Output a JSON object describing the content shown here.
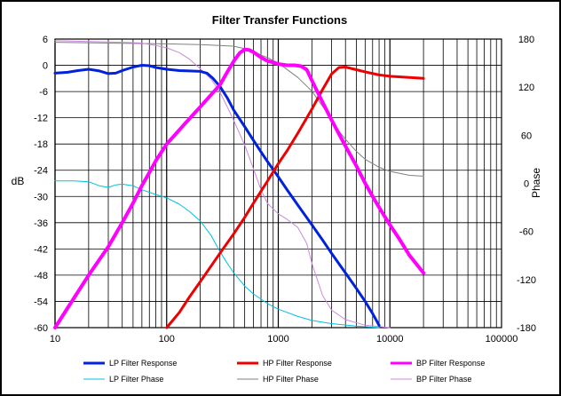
{
  "chart_data": {
    "type": "line",
    "title": "Filter Transfer Functions",
    "xlabel": "",
    "ylabel": "dB",
    "y2label": "Phase",
    "x_scale": "log",
    "xlim": [
      10,
      100000
    ],
    "ylim": [
      -60,
      6
    ],
    "y2lim": [
      -180,
      180
    ],
    "grid": true,
    "legend_position": "bottom",
    "x_ticks": [
      10,
      100,
      1000,
      10000,
      100000
    ],
    "x_tick_labels": [
      "10",
      "100",
      "1000",
      "10000",
      "100000"
    ],
    "y_ticks": [
      6,
      0,
      -6,
      -12,
      -18,
      -24,
      -30,
      -36,
      -42,
      -48,
      -54,
      -60
    ],
    "y_tick_labels": [
      "6",
      "0",
      "-6",
      "-12",
      "-18",
      "-24",
      "-30",
      "-36",
      "-42",
      "-48",
      "-54",
      "-60"
    ],
    "y2_ticks": [
      180,
      120,
      60,
      0,
      -60,
      -120,
      -180
    ],
    "y2_tick_labels": [
      "180",
      "120",
      "60",
      "0",
      "-60",
      "-120",
      "-180"
    ],
    "series": [
      {
        "name": "LP Filter Response",
        "axis": "left",
        "color": "#0022dd",
        "width": 3,
        "points": [
          [
            10,
            -1.8
          ],
          [
            13,
            -1.6
          ],
          [
            16,
            -1.2
          ],
          [
            20,
            -0.9
          ],
          [
            25,
            -1.3
          ],
          [
            30,
            -1.9
          ],
          [
            35,
            -1.8
          ],
          [
            40,
            -1.2
          ],
          [
            50,
            -0.4
          ],
          [
            60,
            0.0
          ],
          [
            70,
            -0.1
          ],
          [
            80,
            -0.5
          ],
          [
            100,
            -0.9
          ],
          [
            130,
            -1.2
          ],
          [
            160,
            -1.3
          ],
          [
            200,
            -1.4
          ],
          [
            230,
            -1.8
          ],
          [
            260,
            -3.0
          ],
          [
            300,
            -4.8
          ],
          [
            350,
            -7.5
          ],
          [
            400,
            -10.3
          ],
          [
            500,
            -14.0
          ],
          [
            600,
            -17.2
          ],
          [
            700,
            -19.8
          ],
          [
            800,
            -22.0
          ],
          [
            1000,
            -25.5
          ],
          [
            1200,
            -28.5
          ],
          [
            1500,
            -32.0
          ],
          [
            2000,
            -36.5
          ],
          [
            2500,
            -40.0
          ],
          [
            3000,
            -43.0
          ],
          [
            4000,
            -47.5
          ],
          [
            5000,
            -51.0
          ],
          [
            6000,
            -54.0
          ],
          [
            7000,
            -56.8
          ],
          [
            8000,
            -59.5
          ]
        ]
      },
      {
        "name": "HP Filter Response",
        "axis": "left",
        "color": "#ee0000",
        "width": 3,
        "points": [
          [
            100,
            -60.0
          ],
          [
            130,
            -56.5
          ],
          [
            160,
            -53.0
          ],
          [
            200,
            -49.5
          ],
          [
            300,
            -43.0
          ],
          [
            400,
            -38.5
          ],
          [
            500,
            -34.8
          ],
          [
            600,
            -31.5
          ],
          [
            700,
            -28.8
          ],
          [
            800,
            -26.5
          ],
          [
            1000,
            -22.5
          ],
          [
            1200,
            -19.5
          ],
          [
            1500,
            -15.5
          ],
          [
            2000,
            -10.0
          ],
          [
            2500,
            -5.5
          ],
          [
            3000,
            -2.0
          ],
          [
            3500,
            -0.5
          ],
          [
            4000,
            -0.4
          ],
          [
            5000,
            -1.0
          ],
          [
            6000,
            -1.5
          ],
          [
            8000,
            -2.2
          ],
          [
            10000,
            -2.5
          ],
          [
            15000,
            -2.8
          ],
          [
            20000,
            -3.0
          ]
        ]
      },
      {
        "name": "BP Filter Response",
        "axis": "left",
        "color": "#ff00ff",
        "width": 4,
        "points": [
          [
            10,
            -60.0
          ],
          [
            15,
            -53.0
          ],
          [
            20,
            -48.0
          ],
          [
            30,
            -41.5
          ],
          [
            40,
            -36.0
          ],
          [
            50,
            -31.5
          ],
          [
            60,
            -27.5
          ],
          [
            70,
            -24.5
          ],
          [
            80,
            -21.8
          ],
          [
            100,
            -18.0
          ],
          [
            150,
            -13.0
          ],
          [
            200,
            -9.5
          ],
          [
            300,
            -4.5
          ],
          [
            350,
            -1.5
          ],
          [
            400,
            1.0
          ],
          [
            450,
            2.8
          ],
          [
            500,
            3.6
          ],
          [
            550,
            3.5
          ],
          [
            600,
            3.0
          ],
          [
            700,
            1.8
          ],
          [
            800,
            1.0
          ],
          [
            1000,
            0.3
          ],
          [
            1200,
            0.0
          ],
          [
            1400,
            0.0
          ],
          [
            1600,
            -0.2
          ],
          [
            1800,
            -1.0
          ],
          [
            2000,
            -3.5
          ],
          [
            2500,
            -8.5
          ],
          [
            3000,
            -12.5
          ],
          [
            4000,
            -18.5
          ],
          [
            5000,
            -23.0
          ],
          [
            6000,
            -27.0
          ],
          [
            7000,
            -30.0
          ],
          [
            8000,
            -32.5
          ],
          [
            10000,
            -36.5
          ],
          [
            12000,
            -39.5
          ],
          [
            15000,
            -43.5
          ],
          [
            20000,
            -47.5
          ]
        ]
      },
      {
        "name": "LP Filter Phase",
        "axis": "right",
        "color": "#00c0e0",
        "width": 1,
        "points": [
          [
            10,
            3
          ],
          [
            15,
            3
          ],
          [
            20,
            2
          ],
          [
            25,
            -3
          ],
          [
            30,
            -5
          ],
          [
            35,
            -2
          ],
          [
            40,
            -1
          ],
          [
            50,
            -3
          ],
          [
            60,
            -8
          ],
          [
            80,
            -14
          ],
          [
            100,
            -18
          ],
          [
            130,
            -26
          ],
          [
            160,
            -35
          ],
          [
            200,
            -47
          ],
          [
            250,
            -65
          ],
          [
            300,
            -85
          ],
          [
            350,
            -100
          ],
          [
            400,
            -112
          ],
          [
            500,
            -128
          ],
          [
            600,
            -138
          ],
          [
            800,
            -150
          ],
          [
            1000,
            -157
          ],
          [
            1500,
            -166
          ],
          [
            2000,
            -171
          ],
          [
            3000,
            -175
          ],
          [
            5000,
            -178
          ],
          [
            8000,
            -180
          ]
        ]
      },
      {
        "name": "HP Filter Phase",
        "axis": "right",
        "color": "#808080",
        "width": 1,
        "points": [
          [
            10,
            176
          ],
          [
            30,
            175
          ],
          [
            100,
            174
          ],
          [
            200,
            173
          ],
          [
            300,
            172
          ],
          [
            400,
            171
          ],
          [
            500,
            168
          ],
          [
            600,
            165
          ],
          [
            700,
            160
          ],
          [
            800,
            157
          ],
          [
            1000,
            150
          ],
          [
            1200,
            142
          ],
          [
            1500,
            132
          ],
          [
            2000,
            115
          ],
          [
            2500,
            96
          ],
          [
            3000,
            80
          ],
          [
            3500,
            65
          ],
          [
            4000,
            55
          ],
          [
            5000,
            40
          ],
          [
            6000,
            30
          ],
          [
            8000,
            20
          ],
          [
            10000,
            15
          ],
          [
            15000,
            10
          ],
          [
            20000,
            9
          ]
        ]
      },
      {
        "name": "BP Filter Phase",
        "axis": "right",
        "color": "#cc88dd",
        "width": 1,
        "points": [
          [
            10,
            178
          ],
          [
            20,
            177
          ],
          [
            40,
            176
          ],
          [
            60,
            175
          ],
          [
            80,
            172
          ],
          [
            100,
            169
          ],
          [
            130,
            163
          ],
          [
            160,
            155
          ],
          [
            200,
            143
          ],
          [
            250,
            130
          ],
          [
            300,
            114
          ],
          [
            350,
            95
          ],
          [
            400,
            78
          ],
          [
            500,
            48
          ],
          [
            600,
            18
          ],
          [
            700,
            -8
          ],
          [
            800,
            -25
          ],
          [
            1000,
            -38
          ],
          [
            1200,
            -45
          ],
          [
            1500,
            -55
          ],
          [
            1800,
            -75
          ],
          [
            2000,
            -100
          ],
          [
            2500,
            -140
          ],
          [
            3000,
            -158
          ],
          [
            4000,
            -170
          ],
          [
            6000,
            -177
          ],
          [
            10000,
            -180
          ]
        ]
      }
    ]
  }
}
